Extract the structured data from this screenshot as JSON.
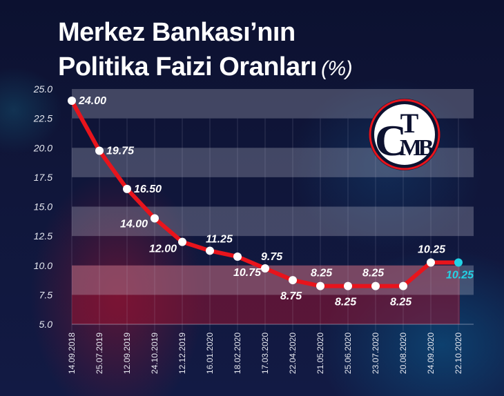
{
  "title": {
    "line1": "Merkez Bankası’nın",
    "line2": "Politika Faizi Oranları",
    "unit": "(%)"
  },
  "logo": {
    "text": "TCMB",
    "letters": {
      "top": "T",
      "left": "C",
      "mid": "M",
      "right": "B"
    }
  },
  "colors": {
    "line": "#e8141c",
    "point": "#ffffff",
    "last_point": "#22d3e6",
    "band": "rgba(200,200,215,0.28)",
    "lower_fill": "rgba(150,20,50,0.55)"
  },
  "chart_data": {
    "type": "line",
    "title": "Merkez Bankası’nın Politika Faizi Oranları (%)",
    "xlabel": "",
    "ylabel": "",
    "ylim": [
      5.0,
      25.0
    ],
    "yticks": [
      "25.0",
      "22.5",
      "20.0",
      "17.5",
      "15.0",
      "12.5",
      "10.0",
      "7.5",
      "5.0"
    ],
    "grid": true,
    "legend": "none",
    "categories": [
      "14.09.2018",
      "25.07.2019",
      "12.09.2019",
      "24.10.2019",
      "12.12.2019",
      "16.01.2020",
      "18.02.2020",
      "17.03.2020",
      "22.04.2020",
      "21.05.2020",
      "25.06.2020",
      "23.07.2020",
      "20.08.2020",
      "24.09.2020",
      "22.10.2020"
    ],
    "series": [
      {
        "name": "Politika Faizi",
        "values": [
          24.0,
          19.75,
          16.5,
          14.0,
          12.0,
          11.25,
          10.75,
          9.75,
          8.75,
          8.25,
          8.25,
          8.25,
          8.25,
          10.25,
          10.25
        ],
        "labels": [
          "24.00",
          "19.75",
          "16.50",
          "14.00",
          "12.00",
          "11.25",
          "10.75",
          "9.75",
          "8.75",
          "8.25",
          "8.25",
          "8.25",
          "8.25",
          "10.25",
          "10.25"
        ]
      }
    ]
  }
}
